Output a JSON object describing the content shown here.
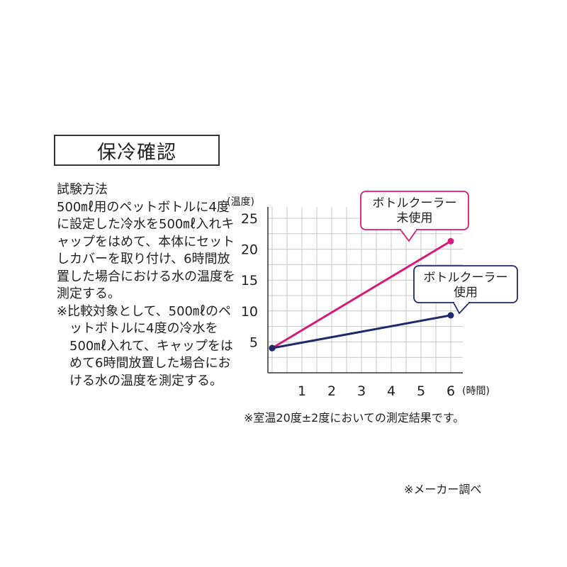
{
  "title": "保冷確認",
  "method": {
    "heading": "試験方法",
    "body": "500㎖用のペットボトルに4度に設定した冷水を500㎖入れキャップをはめて、本体にセットしカバーを取り付け、6時間放置した場合における水の温度を測定する。",
    "note": "※比較対象として、500㎖のペットボトルに4度の冷水を500㎖入れて、キャップをはめて6時間放置した場合における水の温度を測定する。"
  },
  "chart_data": {
    "type": "line",
    "ylabel": "(温度)",
    "xlabel": "(時間)",
    "xlim": [
      0,
      6
    ],
    "ylim": [
      0,
      25
    ],
    "xticks": [
      1,
      2,
      3,
      4,
      5,
      6
    ],
    "yticks": [
      5,
      10,
      15,
      20,
      25
    ],
    "grid": true,
    "series": [
      {
        "name": "ボトルクーラー\n未使用",
        "x": [
          0,
          6
        ],
        "values": [
          4,
          21.3
        ],
        "color": "#d81b78"
      },
      {
        "name": "ボトルクーラー\n使用",
        "x": [
          0,
          6
        ],
        "values": [
          4,
          9.3
        ],
        "color": "#1f2a6b"
      }
    ]
  },
  "footnotes": {
    "chart": "※室温20度±2度においての測定結果です。",
    "maker": "※メーカー調べ"
  }
}
